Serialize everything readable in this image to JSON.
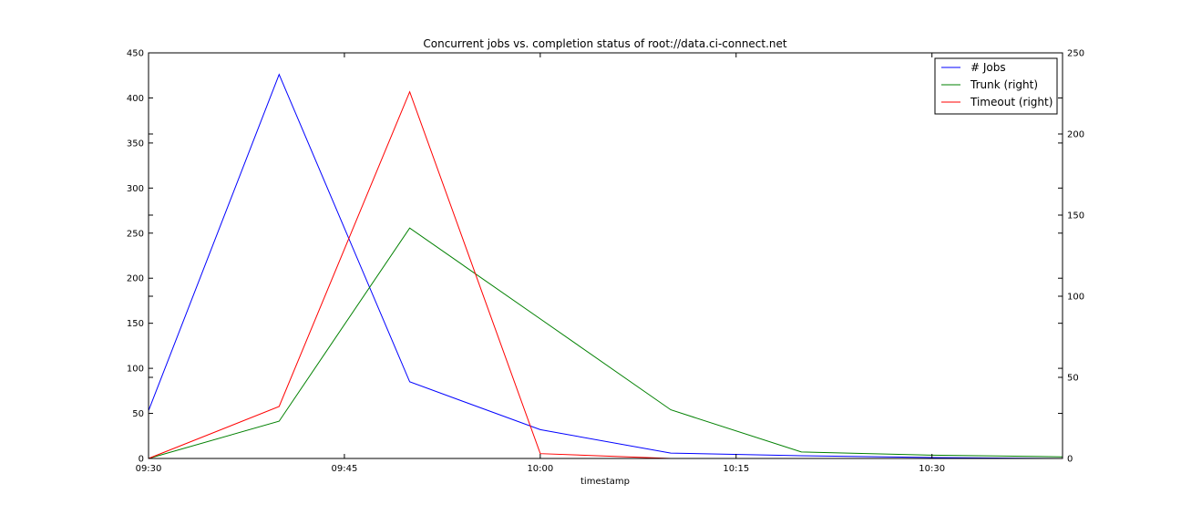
{
  "chart_data": {
    "type": "line",
    "title": "Concurrent jobs vs. completion status of root://data.ci-connect.net",
    "xlabel": "timestamp",
    "x": [
      "09:30",
      "09:40",
      "09:50",
      "10:00",
      "10:10",
      "10:20",
      "10:30",
      "10:40"
    ],
    "x_ticks": [
      "09:30",
      "09:45",
      "10:00",
      "10:15",
      "10:30"
    ],
    "x_range_minutes": [
      0,
      70
    ],
    "left_axis": {
      "ylim": [
        0,
        450
      ],
      "ticks": [
        "0",
        "50",
        "100",
        "150",
        "200",
        "250",
        "300",
        "350",
        "400",
        "450"
      ]
    },
    "right_axis": {
      "ylim": [
        0,
        250
      ],
      "ticks": [
        "0",
        "50",
        "100",
        "150",
        "200",
        "250"
      ]
    },
    "legend_position": "top-right",
    "grid": false,
    "series": [
      {
        "name": "# Jobs",
        "axis": "left",
        "color": "#0000ff",
        "values": [
          53,
          426,
          85,
          32,
          6,
          3,
          1,
          0
        ]
      },
      {
        "name": "Trunk (right)",
        "axis": "right",
        "color": "#008000",
        "values": [
          0,
          23,
          142,
          86,
          30,
          4,
          2,
          1
        ]
      },
      {
        "name": "Timeout (right)",
        "axis": "right",
        "color": "#ff0000",
        "values": [
          0,
          32,
          226,
          3,
          0,
          0,
          0,
          0
        ]
      }
    ]
  }
}
